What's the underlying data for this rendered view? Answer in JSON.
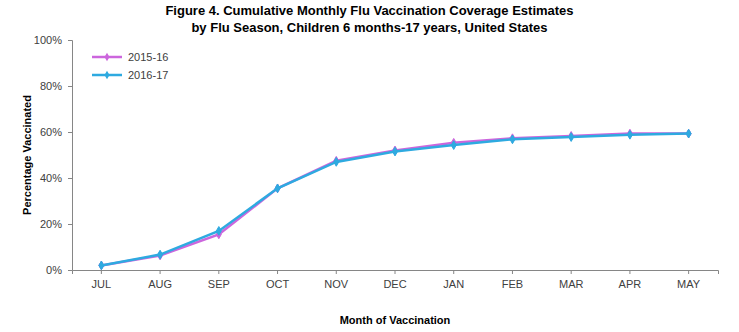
{
  "chart_data": {
    "type": "line",
    "title": [
      "Figure 4. Cumulative Monthly Flu Vaccination Coverage Estimates",
      "by Flu Season, Children 6 months-17 years, United States"
    ],
    "x_label": "Month of Vaccination",
    "y_label": "Percentage Vaccinated",
    "categories": [
      "JUL",
      "AUG",
      "SEP",
      "OCT",
      "NOV",
      "DEC",
      "JAN",
      "FEB",
      "MAR",
      "APR",
      "MAY"
    ],
    "series": [
      {
        "name": "2015-16",
        "color": "#cc66dd",
        "marker": "diamond",
        "values": [
          2.0,
          6.3,
          15.5,
          35.5,
          47.5,
          52.0,
          55.3,
          57.3,
          58.3,
          59.3,
          59.3
        ]
      },
      {
        "name": "2016-17",
        "color": "#2eaae0",
        "marker": "diamond",
        "values": [
          2.0,
          6.7,
          17.0,
          35.5,
          47.0,
          51.5,
          54.3,
          56.8,
          57.8,
          58.8,
          59.3
        ]
      }
    ],
    "ylim": [
      0,
      100
    ],
    "yticks": [
      {
        "value": 0,
        "label": "0%"
      },
      {
        "value": 20,
        "label": "20%"
      },
      {
        "value": 40,
        "label": "40%"
      },
      {
        "value": 60,
        "label": "60%"
      },
      {
        "value": 80,
        "label": "80%"
      },
      {
        "value": 100,
        "label": "100%"
      }
    ],
    "grid": false,
    "legend": "top-left"
  }
}
